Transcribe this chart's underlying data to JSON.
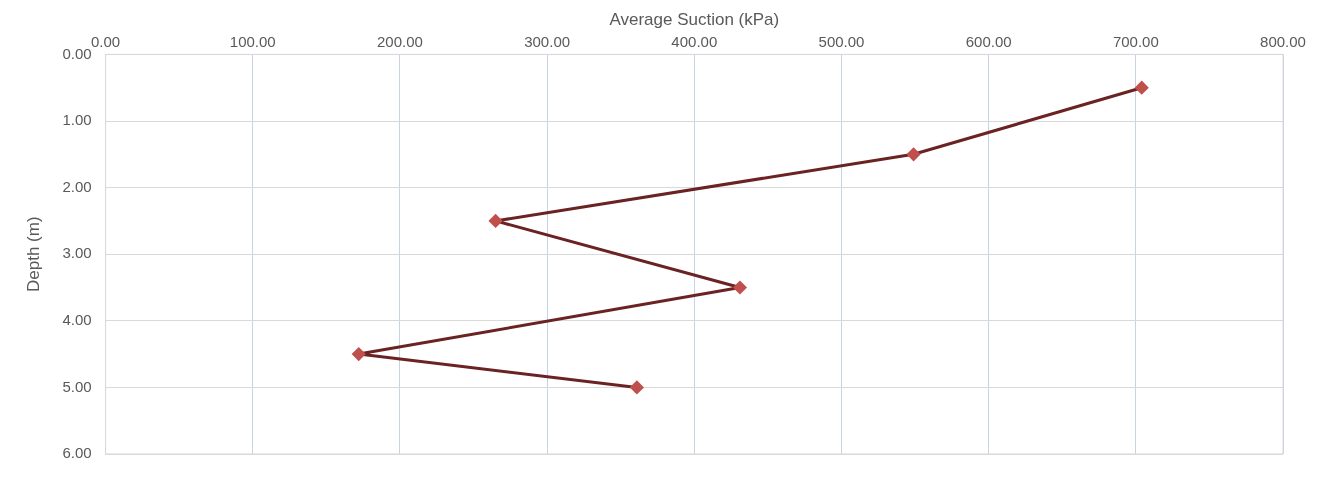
{
  "chart_data": {
    "type": "line",
    "xlabel": "Average Suction (kPa)",
    "ylabel": "Depth (m)",
    "series": [
      {
        "color": "#6b2222",
        "x": [
          704,
          549,
          265,
          431,
          172,
          361
        ],
        "values": [
          0.5,
          1.5,
          2.5,
          3.5,
          4.5,
          5.0
        ]
      }
    ],
    "xlim": [
      0,
      800
    ],
    "xticks": [
      {
        "value": 0,
        "label": "0.00"
      },
      {
        "value": 100,
        "label": "100.00"
      },
      {
        "value": 200,
        "label": "200.00"
      },
      {
        "value": 300,
        "label": "300.00"
      },
      {
        "value": 400,
        "label": "400.00"
      },
      {
        "value": 500,
        "label": "500.00"
      },
      {
        "value": 600,
        "label": "600.00"
      },
      {
        "value": 700,
        "label": "700.00"
      },
      {
        "value": 800,
        "label": "800.00"
      }
    ],
    "ylim": [
      6,
      0
    ],
    "yticks": [
      {
        "value": 0,
        "label": "0.00"
      },
      {
        "value": 1,
        "label": "1.00"
      },
      {
        "value": 2,
        "label": "2.00"
      },
      {
        "value": 3,
        "label": "3.00"
      },
      {
        "value": 4,
        "label": "4.00"
      },
      {
        "value": 5,
        "label": "5.00"
      },
      {
        "value": 6,
        "label": "6.00"
      }
    ],
    "grid": true,
    "marker": "diamond",
    "line_style": "solid",
    "legend": false
  }
}
